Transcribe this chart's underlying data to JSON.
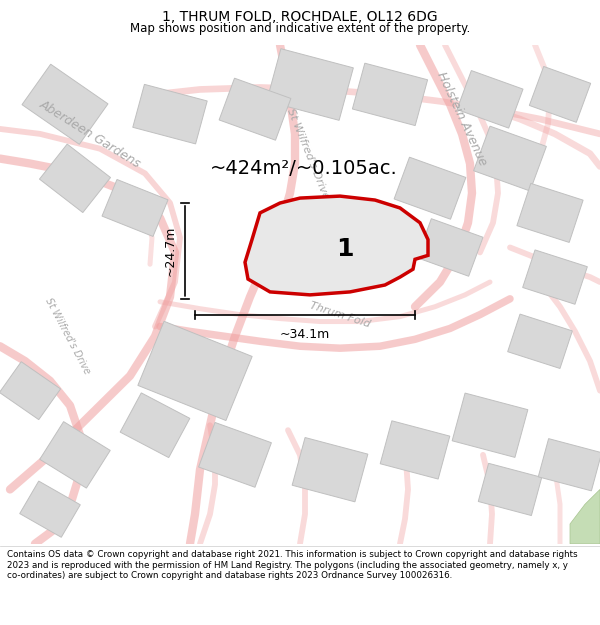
{
  "title": "1, THRUM FOLD, ROCHDALE, OL12 6DG",
  "subtitle": "Map shows position and indicative extent of the property.",
  "area_label": "~424m²/~0.105ac.",
  "plot_number": "1",
  "dim_width": "~34.1m",
  "dim_height": "~24.7m",
  "bg_color": "#f5f5f5",
  "map_bg": "#f5f5f5",
  "road_color": "#f0a0a0",
  "road_fill": "#fae8e8",
  "building_color": "#d8d8d8",
  "building_edge": "#c0c0c0",
  "plot_fill": "#e8e8e8",
  "plot_edge": "#cc0000",
  "street_label_color": "#aaaaaa",
  "footer_text": "Contains OS data © Crown copyright and database right 2021. This information is subject to Crown copyright and database rights 2023 and is reproduced with the permission of HM Land Registry. The polygons (including the associated geometry, namely x, y co-ordinates) are subject to Crown copyright and database rights 2023 Ordnance Survey 100026316.",
  "road_lw": 6,
  "road_alpha": 0.55,
  "title_fontsize": 10,
  "subtitle_fontsize": 8.5,
  "area_fontsize": 14,
  "plot_num_fontsize": 18,
  "dim_fontsize": 9,
  "street_fontsize": 8
}
